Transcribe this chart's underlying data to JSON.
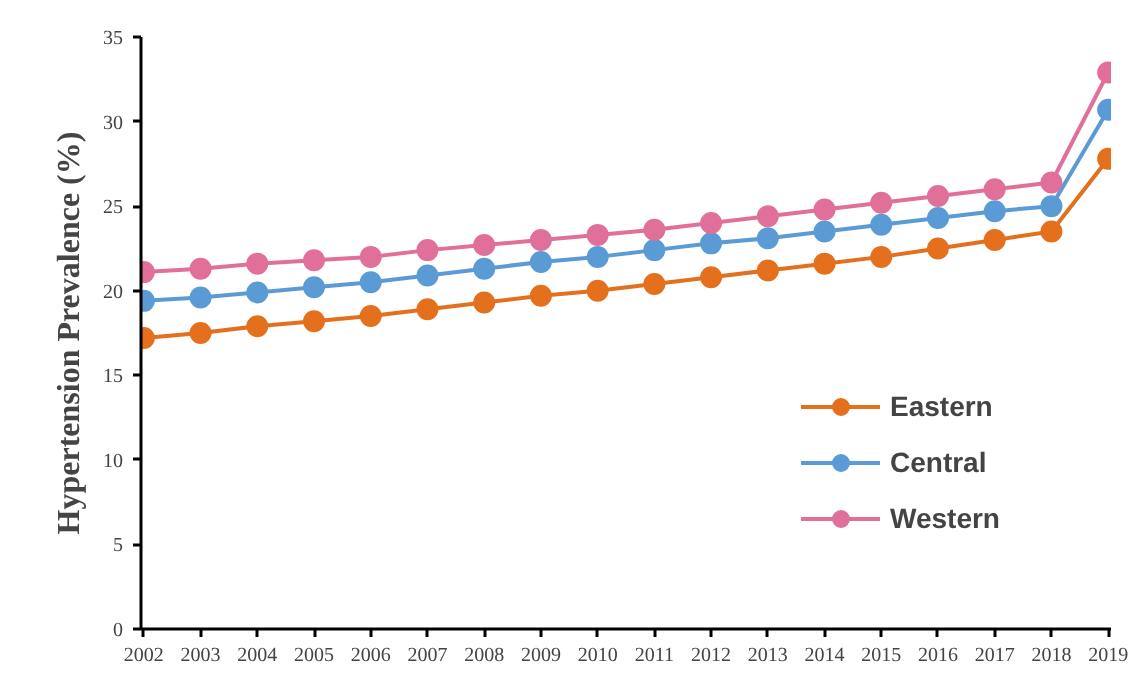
{
  "chart_data": {
    "type": "line",
    "ylabel": "Hypertension Prevalence (%)",
    "categories": [
      "2002",
      "2003",
      "2004",
      "2005",
      "2006",
      "2007",
      "2008",
      "2009",
      "2010",
      "2011",
      "2012",
      "2013",
      "2014",
      "2015",
      "2016",
      "2017",
      "2018",
      "2019"
    ],
    "series": [
      {
        "name": "Eastern",
        "color": "#e4701e",
        "values": [
          17.2,
          17.5,
          17.9,
          18.2,
          18.5,
          18.9,
          19.3,
          19.7,
          20.0,
          20.4,
          20.8,
          21.2,
          21.6,
          22.0,
          22.5,
          23.0,
          23.5,
          27.8
        ]
      },
      {
        "name": "Central",
        "color": "#5b9bd5",
        "values": [
          19.4,
          19.6,
          19.9,
          20.2,
          20.5,
          20.9,
          21.3,
          21.7,
          22.0,
          22.4,
          22.8,
          23.1,
          23.5,
          23.9,
          24.3,
          24.7,
          25.0,
          30.7
        ]
      },
      {
        "name": "Western",
        "color": "#e0709a",
        "values": [
          21.1,
          21.3,
          21.6,
          21.8,
          22.0,
          22.4,
          22.7,
          23.0,
          23.3,
          23.6,
          24.0,
          24.4,
          24.8,
          25.2,
          25.6,
          26.0,
          26.4,
          32.9
        ]
      }
    ],
    "ylim": [
      0,
      35
    ],
    "yticks": [
      0,
      5,
      10,
      15,
      20,
      25,
      30,
      35
    ],
    "grid": false,
    "legend": "right",
    "marker": "circle",
    "line_style": "solid"
  }
}
